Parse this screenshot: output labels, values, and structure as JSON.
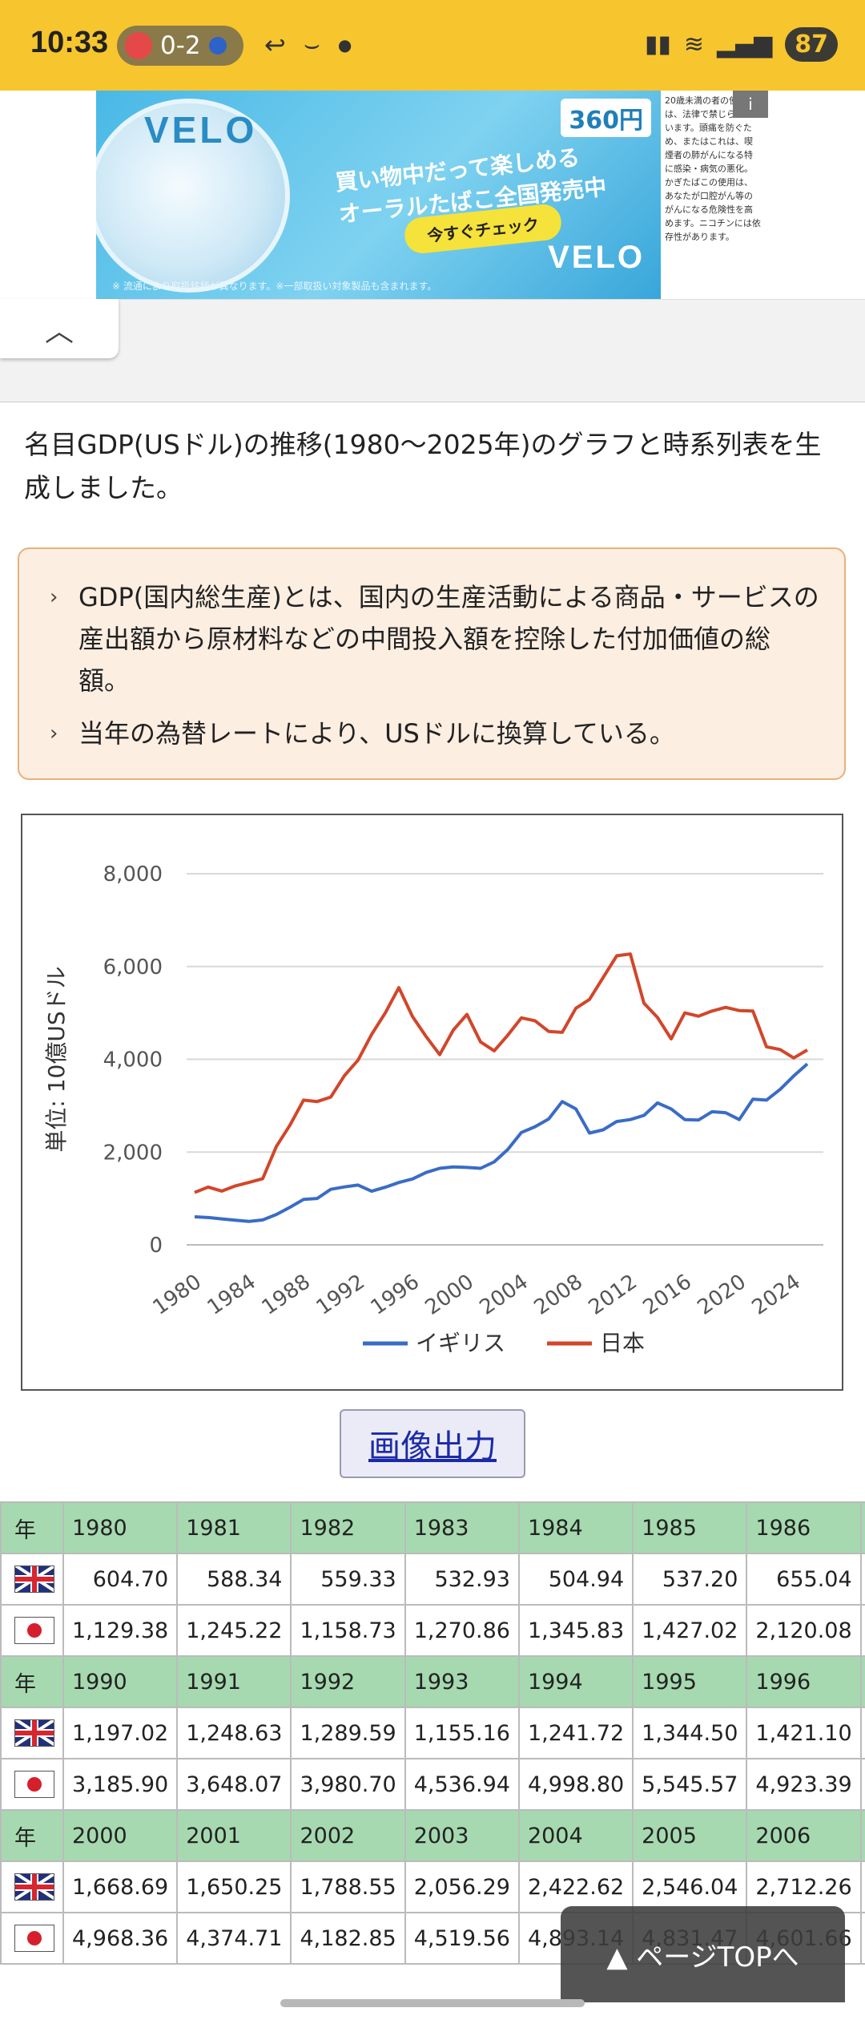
{
  "status_bar": {
    "time": "10:33",
    "score": "0-2",
    "battery": "87",
    "icons": [
      "reply-icon",
      "amazon-icon",
      "dot-icon",
      "book-icon",
      "wifi-icon",
      "signal-icon"
    ]
  },
  "ad": {
    "brand": "VELO",
    "price": "360円",
    "headline_1": "買い物中だって楽しめる",
    "headline_2": "オーラルたばこ全国発売中",
    "cta": "今すぐチェック",
    "fine_print": "※ 流通により取扱銘柄が異なります。※一部取扱い対象製品も含まれます。",
    "side_text": "20歳未満の者の使用は、法律で禁じられています。頭痛を防ぐため、またはこれは、喫煙者の肺がんになる特に感染・病気の悪化。かぎたばこの使用は、あなたが口腔がん等のがんになる危険性を高めます。ニコチンには依存性があります。",
    "info_label": "i"
  },
  "collapse_label": "^",
  "intro_text": "名目GDP(USドル)の推移(1980～2025年)のグラフと時系列表を生成しました。",
  "notes": [
    "GDP(国内総生産)とは、国内の生産活動による商品・サービスの産出額から原材料などの中間投入額を控除した付加価値の総額。",
    "当年の為替レートにより、USドルに換算している。"
  ],
  "image_button_label": "画像出力",
  "table": {
    "year_label": "年",
    "blocks": [
      {
        "years": [
          "1980",
          "1981",
          "1982",
          "1983",
          "1984",
          "1985",
          "1986"
        ],
        "uk": [
          "604.70",
          "588.34",
          "559.33",
          "532.93",
          "504.94",
          "537.20",
          "655.04"
        ],
        "jp": [
          "1,129.38",
          "1,245.22",
          "1,158.73",
          "1,270.86",
          "1,345.83",
          "1,427.02",
          "2,120.08"
        ]
      },
      {
        "years": [
          "1990",
          "1991",
          "1992",
          "1993",
          "1994",
          "1995",
          "1996"
        ],
        "uk": [
          "1,197.02",
          "1,248.63",
          "1,289.59",
          "1,155.16",
          "1,241.72",
          "1,344.50",
          "1,421.10"
        ],
        "jp": [
          "3,185.90",
          "3,648.07",
          "3,980.70",
          "4,536.94",
          "4,998.80",
          "5,545.57",
          "4,923.39"
        ]
      },
      {
        "years": [
          "2000",
          "2001",
          "2002",
          "2003",
          "2004",
          "2005",
          "2006"
        ],
        "uk": [
          "1,668.69",
          "1,650.25",
          "1,788.55",
          "2,056.29",
          "2,422.62",
          "2,546.04",
          "2,712.26"
        ],
        "jp": [
          "4,968.36",
          "4,374.71",
          "4,182.85",
          "4,519.56",
          "4,893.14",
          "4,831.47",
          "4,601.66"
        ]
      }
    ]
  },
  "page_top_label": "▲ ページTOPへ",
  "chart_data": {
    "type": "line",
    "title": "",
    "ylabel": "単位: 10億USドル",
    "xlabel": "",
    "ylim": [
      0,
      8000
    ],
    "yticks": [
      "0",
      "2,000",
      "4,000",
      "6,000",
      "8,000"
    ],
    "xticks": [
      "1980",
      "1984",
      "1988",
      "1992",
      "1996",
      "2000",
      "2004",
      "2008",
      "2012",
      "2016",
      "2020",
      "2024"
    ],
    "x": [
      1980,
      1981,
      1982,
      1983,
      1984,
      1985,
      1986,
      1987,
      1988,
      1989,
      1990,
      1991,
      1992,
      1993,
      1994,
      1995,
      1996,
      1997,
      1998,
      1999,
      2000,
      2001,
      2002,
      2003,
      2004,
      2005,
      2006,
      2007,
      2008,
      2009,
      2010,
      2011,
      2012,
      2013,
      2014,
      2015,
      2016,
      2017,
      2018,
      2019,
      2020,
      2021,
      2022,
      2023,
      2024,
      2025
    ],
    "series": [
      {
        "name": "イギリス",
        "color": "#3a6cc6",
        "values": [
          604.7,
          588.34,
          559.33,
          532.93,
          504.94,
          537.2,
          655.04,
          810,
          980,
          1000,
          1197.02,
          1248.63,
          1289.59,
          1155.16,
          1241.72,
          1344.5,
          1421.1,
          1560,
          1650,
          1680,
          1668.69,
          1650.25,
          1788.55,
          2056.29,
          2422.62,
          2546.04,
          2712.26,
          3090,
          2930,
          2410,
          2480,
          2660,
          2700,
          2790,
          3060,
          2930,
          2700,
          2690,
          2870,
          2850,
          2700,
          3140,
          3120,
          3350,
          3640,
          3900
        ]
      },
      {
        "name": "日本",
        "color": "#d2462a",
        "values": [
          1129.38,
          1245.22,
          1158.73,
          1270.86,
          1345.83,
          1427.02,
          2120.08,
          2580,
          3120,
          3090,
          3185.9,
          3648.07,
          3980.7,
          4536.94,
          4998.8,
          5545.57,
          4923.39,
          4490,
          4100,
          4630,
          4968.36,
          4374.71,
          4182.85,
          4519.56,
          4893.14,
          4831.47,
          4601.66,
          4580,
          5100,
          5290,
          5760,
          6230,
          6270,
          5210,
          4900,
          4440,
          5000,
          4930,
          5040,
          5120,
          5050,
          5040,
          4270,
          4210,
          4030,
          4200
        ]
      }
    ],
    "legend": "bottom"
  }
}
